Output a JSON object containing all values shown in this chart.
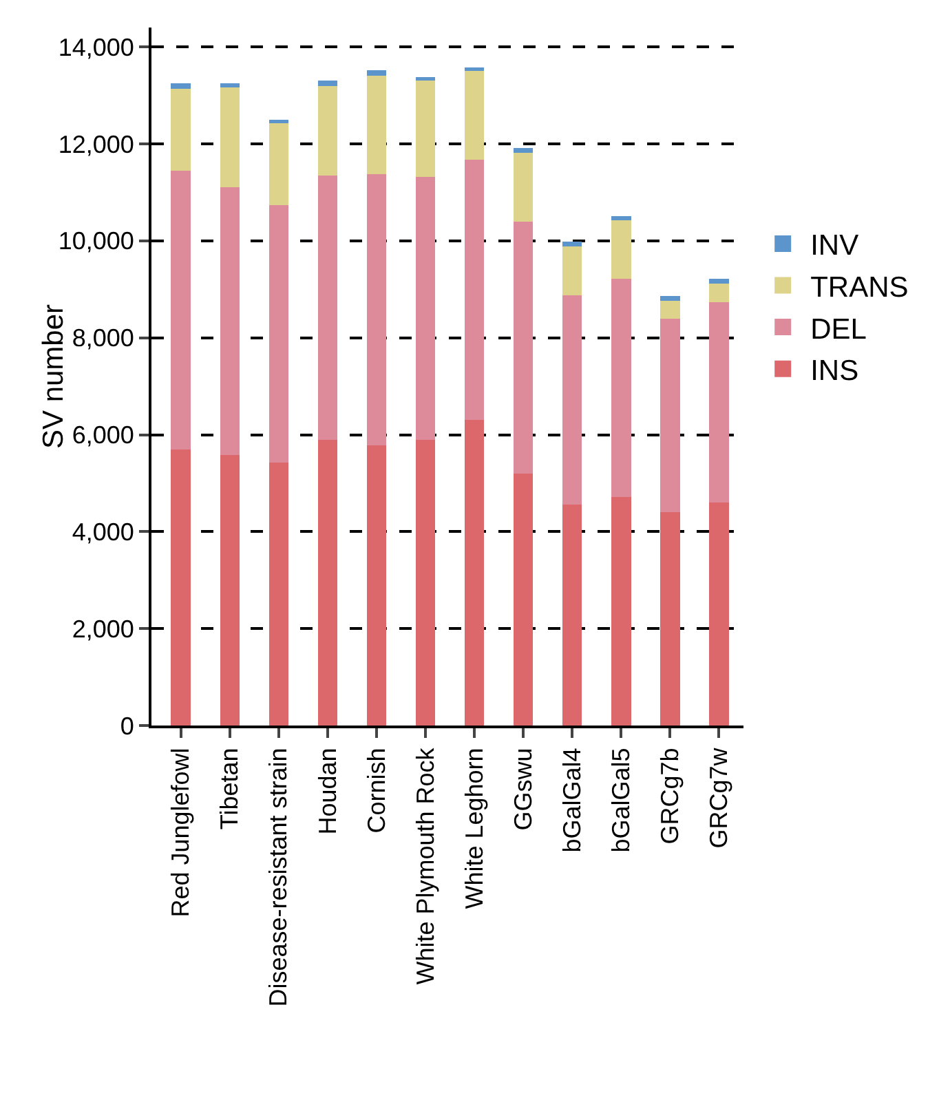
{
  "chart_data": {
    "type": "bar",
    "stacked": true,
    "ylabel": "SV number",
    "categories": [
      "Red Junglefowl",
      "Tibetan",
      "Disease-resistant strain",
      "Houdan",
      "Cornish",
      "White Plymouth Rock",
      "White Leghorn",
      "GGswu",
      "bGalGal4",
      "bGalGal5",
      "GRCg7b",
      "GRCg7w"
    ],
    "series": [
      {
        "name": "INS",
        "color": "#dc686c",
        "values": [
          5700,
          5580,
          5420,
          5900,
          5780,
          5900,
          6300,
          5200,
          4560,
          4720,
          4400,
          4600
        ]
      },
      {
        "name": "DEL",
        "color": "#dd8a9a",
        "values": [
          5750,
          5520,
          5310,
          5440,
          5600,
          5420,
          5380,
          5200,
          4310,
          4490,
          4000,
          4140
        ]
      },
      {
        "name": "TRANS",
        "color": "#ddd38a",
        "values": [
          1680,
          2070,
          1690,
          1860,
          2020,
          1980,
          1820,
          1420,
          1010,
          1210,
          360,
          380
        ]
      },
      {
        "name": "INV",
        "color": "#5b95cc",
        "values": [
          120,
          80,
          80,
          100,
          120,
          80,
          80,
          100,
          100,
          90,
          100,
          90
        ]
      }
    ],
    "ylim": [
      0,
      14400
    ],
    "yticks": [
      {
        "value": 0,
        "label": "0"
      },
      {
        "value": 2000,
        "label": "2,000"
      },
      {
        "value": 4000,
        "label": "4,000"
      },
      {
        "value": 6000,
        "label": "6,000"
      },
      {
        "value": 8000,
        "label": "8,000"
      },
      {
        "value": 10000,
        "label": "10,000"
      },
      {
        "value": 12000,
        "label": "12,000"
      },
      {
        "value": 14000,
        "label": "14,000"
      }
    ],
    "grid": "y",
    "legend": "right"
  }
}
